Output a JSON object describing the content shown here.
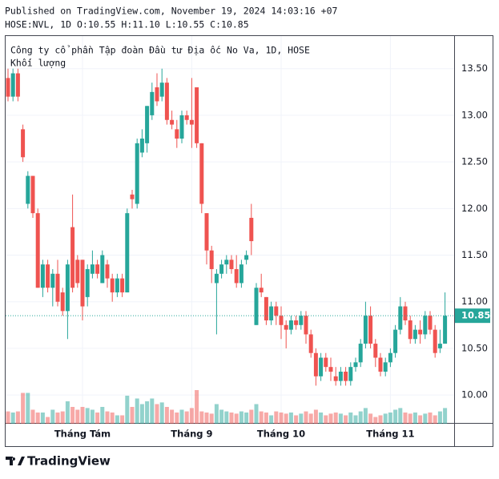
{
  "header": {
    "published": "Published on TradingView.com, November 19, 2024 14:03:16 +07",
    "symbol_line": "HOSE:NVL, 1D O:10.55 H:11.10 L:10.55 C:10.85"
  },
  "chart_data": {
    "type": "candlestick",
    "title": "Công ty cổ phần Tập đoàn Đầu tư Địa ốc No Va, 1D, HOSE",
    "volume_label": "Khối lượng",
    "up_color": "#26a69a",
    "down_color": "#ef5350",
    "candles": [
      [
        13.4,
        13.5,
        13.15,
        13.2
      ],
      [
        13.2,
        13.5,
        13.15,
        13.45
      ],
      [
        13.45,
        13.5,
        13.15,
        13.2
      ],
      [
        12.85,
        12.9,
        12.5,
        12.55
      ],
      [
        12.05,
        12.4,
        12.0,
        12.35
      ],
      [
        12.35,
        12.35,
        11.9,
        11.95
      ],
      [
        11.95,
        12.0,
        11.15,
        11.15
      ],
      [
        11.15,
        11.45,
        11.05,
        11.4
      ],
      [
        11.4,
        11.45,
        11.1,
        11.15
      ],
      [
        11.15,
        11.35,
        10.95,
        11.3
      ],
      [
        11.3,
        11.45,
        10.95,
        11.0
      ],
      [
        11.1,
        11.15,
        10.85,
        10.9
      ],
      [
        10.9,
        11.45,
        10.6,
        11.4
      ],
      [
        11.8,
        12.15,
        11.1,
        11.15
      ],
      [
        11.45,
        11.5,
        11.15,
        11.2
      ],
      [
        11.45,
        11.45,
        10.8,
        10.95
      ],
      [
        11.05,
        11.4,
        10.95,
        11.35
      ],
      [
        11.3,
        11.55,
        11.25,
        11.4
      ],
      [
        11.4,
        11.45,
        11.25,
        11.3
      ],
      [
        11.2,
        11.55,
        11.2,
        11.5
      ],
      [
        11.4,
        11.45,
        11.15,
        11.25
      ],
      [
        11.25,
        11.3,
        11.0,
        11.1
      ],
      [
        11.1,
        11.3,
        11.05,
        11.25
      ],
      [
        11.25,
        11.3,
        11.05,
        11.1
      ],
      [
        11.1,
        12.0,
        11.1,
        11.95
      ],
      [
        12.15,
        12.2,
        12.0,
        12.1
      ],
      [
        12.05,
        12.75,
        12.0,
        12.7
      ],
      [
        12.6,
        12.85,
        12.55,
        12.75
      ],
      [
        12.7,
        13.1,
        12.6,
        13.1
      ],
      [
        13.0,
        13.35,
        12.95,
        13.25
      ],
      [
        13.3,
        13.45,
        13.1,
        13.15
      ],
      [
        13.2,
        13.5,
        13.15,
        13.35
      ],
      [
        13.35,
        13.4,
        12.9,
        12.95
      ],
      [
        12.95,
        13.05,
        12.85,
        12.9
      ],
      [
        12.85,
        12.95,
        12.65,
        12.75
      ],
      [
        12.75,
        13.05,
        12.7,
        13.0
      ],
      [
        13.0,
        13.05,
        12.9,
        12.95
      ],
      [
        12.95,
        13.4,
        12.65,
        12.9
      ],
      [
        13.3,
        13.3,
        12.65,
        12.7
      ],
      [
        12.7,
        12.7,
        11.95,
        12.05
      ],
      [
        11.95,
        11.95,
        11.4,
        11.55
      ],
      [
        11.55,
        11.6,
        11.2,
        11.35
      ],
      [
        11.2,
        11.35,
        10.65,
        11.3
      ],
      [
        11.3,
        11.45,
        11.25,
        11.4
      ],
      [
        11.4,
        11.5,
        11.3,
        11.45
      ],
      [
        11.45,
        11.5,
        11.3,
        11.35
      ],
      [
        11.35,
        11.5,
        11.15,
        11.2
      ],
      [
        11.2,
        11.45,
        11.15,
        11.4
      ],
      [
        11.45,
        11.55,
        11.4,
        11.5
      ],
      [
        11.9,
        12.05,
        11.5,
        11.65
      ],
      [
        10.75,
        11.2,
        10.75,
        11.15
      ],
      [
        11.15,
        11.3,
        11.05,
        11.1
      ],
      [
        11.05,
        11.05,
        10.75,
        10.8
      ],
      [
        10.8,
        11.0,
        10.75,
        10.95
      ],
      [
        10.95,
        11.0,
        10.75,
        10.85
      ],
      [
        10.85,
        10.95,
        10.6,
        10.75
      ],
      [
        10.75,
        10.8,
        10.5,
        10.7
      ],
      [
        10.7,
        10.85,
        10.65,
        10.8
      ],
      [
        10.8,
        10.85,
        10.7,
        10.75
      ],
      [
        10.75,
        10.9,
        10.7,
        10.85
      ],
      [
        10.85,
        10.9,
        10.55,
        10.65
      ],
      [
        10.65,
        10.7,
        10.4,
        10.45
      ],
      [
        10.45,
        10.5,
        10.1,
        10.2
      ],
      [
        10.2,
        10.45,
        10.15,
        10.4
      ],
      [
        10.4,
        10.45,
        10.25,
        10.3
      ],
      [
        10.3,
        10.4,
        10.15,
        10.25
      ],
      [
        10.2,
        10.3,
        10.1,
        10.15
      ],
      [
        10.15,
        10.3,
        10.1,
        10.25
      ],
      [
        10.25,
        10.3,
        10.1,
        10.15
      ],
      [
        10.15,
        10.35,
        10.1,
        10.3
      ],
      [
        10.3,
        10.4,
        10.25,
        10.35
      ],
      [
        10.35,
        10.6,
        10.3,
        10.55
      ],
      [
        10.55,
        11.0,
        10.5,
        10.85
      ],
      [
        10.85,
        10.95,
        10.5,
        10.55
      ],
      [
        10.55,
        10.6,
        10.3,
        10.4
      ],
      [
        10.4,
        10.45,
        10.2,
        10.25
      ],
      [
        10.25,
        10.4,
        10.2,
        10.35
      ],
      [
        10.35,
        10.5,
        10.3,
        10.45
      ],
      [
        10.45,
        10.75,
        10.4,
        10.7
      ],
      [
        10.7,
        11.05,
        10.65,
        10.95
      ],
      [
        10.95,
        11.0,
        10.75,
        10.8
      ],
      [
        10.8,
        10.85,
        10.55,
        10.6
      ],
      [
        10.6,
        10.75,
        10.55,
        10.7
      ],
      [
        10.7,
        10.8,
        10.55,
        10.65
      ],
      [
        10.65,
        10.9,
        10.6,
        10.85
      ],
      [
        10.85,
        10.9,
        10.65,
        10.7
      ],
      [
        10.7,
        10.75,
        10.4,
        10.45
      ],
      [
        10.5,
        10.7,
        10.45,
        10.55
      ],
      [
        10.55,
        11.1,
        10.55,
        10.85
      ]
    ],
    "volume": [
      22,
      20,
      22,
      55,
      55,
      25,
      20,
      20,
      12,
      25,
      20,
      22,
      40,
      30,
      25,
      30,
      28,
      25,
      20,
      30,
      22,
      20,
      15,
      15,
      50,
      30,
      45,
      35,
      40,
      45,
      35,
      38,
      30,
      25,
      20,
      25,
      22,
      28,
      60,
      22,
      20,
      18,
      35,
      25,
      22,
      20,
      18,
      22,
      20,
      25,
      35,
      22,
      20,
      15,
      22,
      20,
      18,
      20,
      15,
      18,
      22,
      18,
      25,
      20,
      15,
      18,
      20,
      18,
      15,
      20,
      15,
      22,
      28,
      18,
      12,
      15,
      18,
      20,
      25,
      28,
      20,
      18,
      20,
      15,
      18,
      20,
      15,
      22,
      28
    ],
    "volume_lim": [
      0,
      100
    ],
    "ylim": [
      9.7,
      13.85
    ],
    "yticks": [
      {
        "value": 10,
        "label": "10.00"
      },
      {
        "value": 10.5,
        "label": "10.50"
      },
      {
        "value": 11,
        "label": "11.00"
      },
      {
        "value": 11.5,
        "label": "11.50"
      },
      {
        "value": 12,
        "label": "12.00"
      },
      {
        "value": 12.5,
        "label": "12.50"
      },
      {
        "value": 13,
        "label": "13.00"
      },
      {
        "value": 13.5,
        "label": "13.50"
      }
    ],
    "xticks": [
      {
        "value": 15,
        "label": "Tháng Tám"
      },
      {
        "value": 37,
        "label": "Tháng 9"
      },
      {
        "value": 55,
        "label": "Tháng 10"
      },
      {
        "value": 77,
        "label": "Tháng 11"
      }
    ],
    "last_price": {
      "value": 10.85,
      "label": "10.85"
    },
    "grid": true
  },
  "footer": {
    "brand": "TradingView"
  }
}
